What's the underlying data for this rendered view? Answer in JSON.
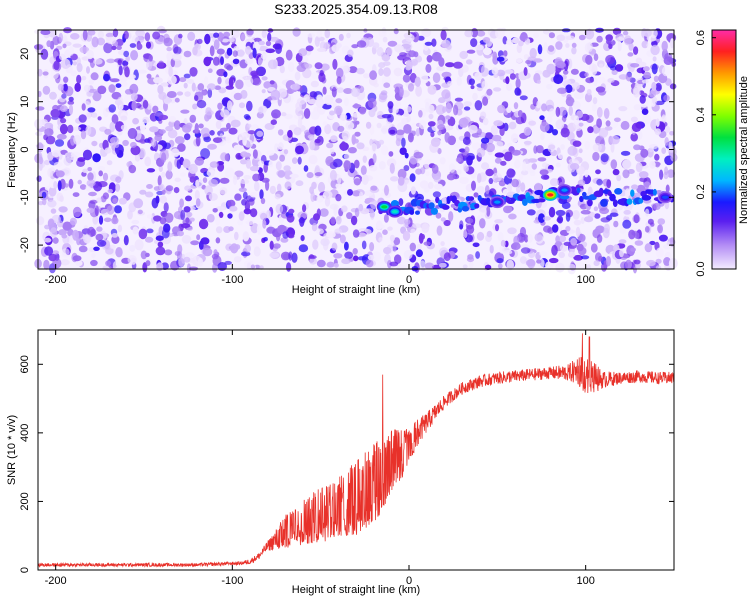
{
  "chart_data": [
    {
      "type": "heatmap",
      "title": "S233.2025.354.09.13.R08",
      "xlabel": "Height of straight line (km)",
      "ylabel": "Frequency (Hz)",
      "xlim": [
        -210,
        150
      ],
      "ylim": [
        -25,
        25
      ],
      "xticks": [
        -200,
        -100,
        0,
        100
      ],
      "yticks": [
        -20,
        -10,
        0,
        10,
        20
      ],
      "colorbar": {
        "label": "Normalized spectral amplitude",
        "range": [
          0.0,
          0.62
        ],
        "ticks": [
          "0.0",
          "0.2",
          "0.4",
          "0.6"
        ],
        "tick_values": [
          0.0,
          0.2,
          0.4,
          0.6
        ]
      },
      "feature": {
        "description_points_x": [
          -15,
          0,
          20,
          50,
          80,
          90,
          100,
          150
        ],
        "frequency_hz": [
          -12,
          -12.5,
          -11.5,
          -11,
          -9.5,
          -9,
          -10,
          -10
        ],
        "peaks": [
          {
            "x": -14,
            "f": -12,
            "amp": 0.35
          },
          {
            "x": -8,
            "f": -13,
            "amp": 0.3
          },
          {
            "x": 50,
            "f": -11,
            "amp": 0.25
          },
          {
            "x": 80,
            "f": -9.5,
            "amp": 0.6
          },
          {
            "x": 88,
            "f": -8.5,
            "amp": 0.25
          },
          {
            "x": 145,
            "f": -10,
            "amp": 0.22
          }
        ]
      }
    },
    {
      "type": "line",
      "title": "",
      "xlabel": "Height of straight line (km)",
      "ylabel": "SNR (10 * v/v)",
      "xlim": [
        -210,
        150
      ],
      "ylim": [
        0,
        700
      ],
      "xticks": [
        -200,
        -100,
        0,
        100
      ],
      "yticks": [
        0,
        200,
        400,
        600
      ],
      "series": [
        {
          "name": "SNR",
          "color": "#e8312a",
          "x": [
            -210,
            -120,
            -95,
            -90,
            -85,
            -80,
            -70,
            -60,
            -50,
            -40,
            -30,
            -20,
            -15,
            -10,
            -5,
            0,
            5,
            10,
            15,
            20,
            25,
            30,
            40,
            50,
            60,
            70,
            80,
            90,
            95,
            100,
            105,
            110,
            120,
            130,
            140,
            150
          ],
          "y": [
            15,
            15,
            20,
            25,
            40,
            70,
            110,
            140,
            160,
            180,
            210,
            250,
            280,
            320,
            330,
            370,
            400,
            430,
            460,
            490,
            510,
            530,
            550,
            560,
            565,
            570,
            575,
            575,
            580,
            570,
            560,
            555,
            560,
            565,
            560,
            560
          ],
          "noise_amplitude": [
            5,
            5,
            5,
            8,
            10,
            15,
            50,
            70,
            80,
            90,
            110,
            120,
            110,
            90,
            80,
            50,
            40,
            30,
            25,
            20,
            18,
            18,
            18,
            18,
            18,
            18,
            18,
            25,
            40,
            55,
            45,
            25,
            18,
            18,
            18,
            18
          ]
        }
      ]
    }
  ]
}
